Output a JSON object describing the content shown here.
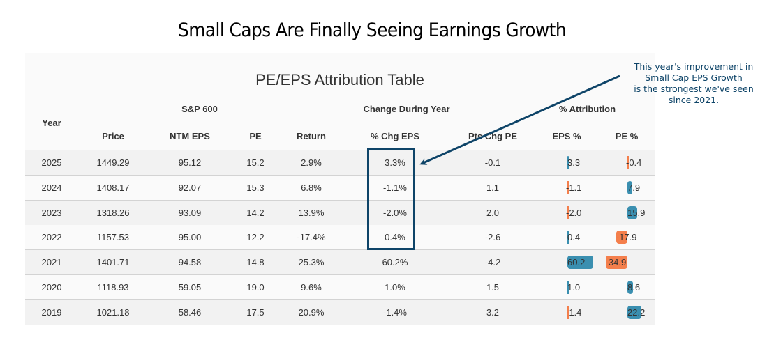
{
  "headline": "Small Caps Are Finally Seeing Earnings Growth",
  "table": {
    "title": "PE/EPS Attribution Table",
    "group_headers": {
      "year": "Year",
      "sp600": "S&P 600",
      "change": "Change During Year",
      "attribution": "% Attribution"
    },
    "columns": [
      "Price",
      "NTM EPS",
      "PE",
      "Return",
      "% Chg EPS",
      "Pts Chg PE",
      "EPS %",
      "PE %"
    ],
    "rows": [
      {
        "year": "2025",
        "price": "1449.29",
        "ntm_eps": "95.12",
        "pe": "15.2",
        "return": "2.9%",
        "chg_eps": "3.3%",
        "pts_chg_pe": "-0.1",
        "eps_pct": "3.3",
        "eps_val": 3.3,
        "pe_pct": "-0.4",
        "pe_val": -0.4
      },
      {
        "year": "2024",
        "price": "1408.17",
        "ntm_eps": "92.07",
        "pe": "15.3",
        "return": "6.8%",
        "chg_eps": "-1.1%",
        "pts_chg_pe": "1.1",
        "eps_pct": "-1.1",
        "eps_val": -1.1,
        "pe_pct": "7.9",
        "pe_val": 7.9
      },
      {
        "year": "2023",
        "price": "1318.26",
        "ntm_eps": "93.09",
        "pe": "14.2",
        "return": "13.9%",
        "chg_eps": "-2.0%",
        "pts_chg_pe": "2.0",
        "eps_pct": "-2.0",
        "eps_val": -2.0,
        "pe_pct": "15.9",
        "pe_val": 15.9
      },
      {
        "year": "2022",
        "price": "1157.53",
        "ntm_eps": "95.00",
        "pe": "12.2",
        "return": "-17.4%",
        "chg_eps": "0.4%",
        "pts_chg_pe": "-2.6",
        "eps_pct": "0.4",
        "eps_val": 0.4,
        "pe_pct": "-17.9",
        "pe_val": -17.9
      },
      {
        "year": "2021",
        "price": "1401.71",
        "ntm_eps": "94.58",
        "pe": "14.8",
        "return": "25.3%",
        "chg_eps": "60.2%",
        "pts_chg_pe": "-4.2",
        "eps_pct": "60.2",
        "eps_val": 60.2,
        "pe_pct": "-34.9",
        "pe_val": -34.9
      },
      {
        "year": "2020",
        "price": "1118.93",
        "ntm_eps": "59.05",
        "pe": "19.0",
        "return": "9.6%",
        "chg_eps": "1.0%",
        "pts_chg_pe": "1.5",
        "eps_pct": "1.0",
        "eps_val": 1.0,
        "pe_pct": "8.6",
        "pe_val": 8.6
      },
      {
        "year": "2019",
        "price": "1021.18",
        "ntm_eps": "58.46",
        "pe": "17.5",
        "return": "20.9%",
        "chg_eps": "-1.4%",
        "pts_chg_pe": "3.2",
        "eps_pct": "-1.4",
        "eps_val": -1.4,
        "pe_pct": "22.2",
        "pe_val": 22.2
      }
    ]
  },
  "annotation": {
    "lines": [
      "This year's improvement in",
      "Small Cap EPS Growth",
      "is the strongest we've seen",
      "since 2021."
    ]
  },
  "colors": {
    "positive_bar": "#3a8fb0",
    "negative_bar": "#f47f4c",
    "highlight": "#0e4468"
  }
}
